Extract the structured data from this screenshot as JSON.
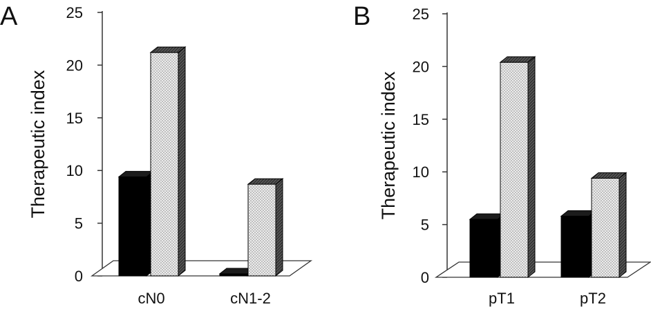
{
  "colors": {
    "series_dark": "#000000",
    "series_dotted": "#d9d9d9",
    "axis": "#333333",
    "background": "#ffffff"
  },
  "chart_data": [
    {
      "panel": "A",
      "type": "bar",
      "three_d": true,
      "ylabel": "Therapeutic index",
      "xlabel": "",
      "ylim": [
        0,
        25
      ],
      "yticks": [
        0,
        5,
        10,
        15,
        20,
        25
      ],
      "categories": [
        "cN0",
        "cN1-2"
      ],
      "legend": "none",
      "grid": false,
      "series": [
        {
          "style": "solid-black",
          "values": [
            9.4,
            0.2
          ]
        },
        {
          "style": "dotted-gray",
          "values": [
            21.2,
            8.7
          ]
        }
      ]
    },
    {
      "panel": "B",
      "type": "bar",
      "three_d": true,
      "ylabel": "Therapeutic index",
      "xlabel": "",
      "ylim": [
        0,
        25
      ],
      "yticks": [
        0,
        5,
        10,
        15,
        20,
        25
      ],
      "categories": [
        "pT1",
        "pT2"
      ],
      "legend": "none",
      "grid": false,
      "series": [
        {
          "style": "solid-black",
          "values": [
            5.5,
            5.8
          ]
        },
        {
          "style": "dotted-gray",
          "values": [
            20.4,
            9.4
          ]
        }
      ]
    }
  ]
}
